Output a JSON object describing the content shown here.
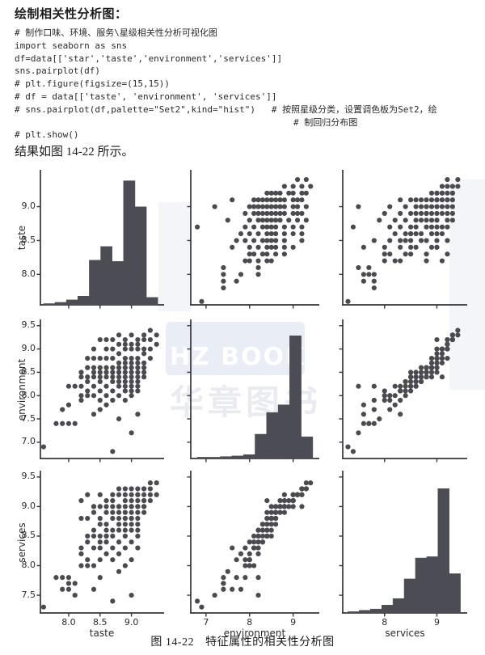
{
  "page": {
    "title": "绘制相关性分析图：",
    "result_text": "结果如图 14-22 所示。",
    "caption_prefix": "图 14-22",
    "caption_text": "特征属性的相关性分析图",
    "watermark": {
      "line1": "HZ BOOKS",
      "line2": "华章图书"
    }
  },
  "code": {
    "lines": [
      "# 制作口味、环境、服务\\星级相关性分析可视化图",
      "import seaborn as sns",
      "df=data[['star','taste','environment','services']]",
      "sns.pairplot(df)",
      "# plt.figure(figsize=(15,15))",
      "# df = data[['taste', 'environment', 'services']]",
      "# sns.pairplot(df,palette=\"Set2\",kind=\"hist\")   # 按照星级分类，设置调色板为Set2，绘",
      "# 制回归分布图",
      "# plt.show()"
    ]
  },
  "chart_data": {
    "type": "scatter",
    "subtype": "seaborn-pairplot",
    "title": "",
    "variables": [
      "taste",
      "environment",
      "services"
    ],
    "grid": "3x3, diagonal = histograms, off-diagonal = scatter",
    "legend": "none",
    "colors": {
      "dot": "#4a4a50",
      "bar": "#4c4c54",
      "axis": "#35353a"
    },
    "axes": {
      "taste": {
        "lim": [
          7.55,
          9.52
        ],
        "yticks": [
          8.0,
          8.5,
          9.0
        ],
        "ytick_labels": [
          "8.0",
          "8.5",
          "9.0"
        ],
        "xticks": [
          8.0,
          8.5,
          9.0
        ],
        "xtick_labels": [
          "8.0",
          "8.5",
          "9.0"
        ]
      },
      "environment": {
        "lim": [
          6.65,
          9.6
        ],
        "yticks": [
          7.0,
          7.5,
          8.0,
          8.5,
          9.0,
          9.5
        ],
        "ytick_labels": [
          "7.0",
          "7.5",
          "8.0",
          "8.5",
          "9.0",
          "9.5"
        ],
        "xticks": [
          7,
          8,
          9
        ],
        "xtick_labels": [
          "7",
          "8",
          "9"
        ]
      },
      "services": {
        "lim": [
          7.2,
          9.58
        ],
        "yticks": [
          7.5,
          8.0,
          8.5,
          9.0,
          9.5
        ],
        "ytick_labels": [
          "7.5",
          "8.0",
          "8.5",
          "9.0",
          "9.5"
        ],
        "xticks": [
          8,
          9
        ],
        "xtick_labels": [
          "8",
          "9"
        ]
      }
    },
    "histograms": {
      "taste": {
        "bin_start": 7.6,
        "bin_end": 9.42,
        "rel_heights": [
          0.01,
          0.02,
          0.04,
          0.07,
          0.36,
          0.47,
          0.35,
          1.0,
          0.79,
          0.06
        ]
      },
      "environment": {
        "bin_start": 6.8,
        "bin_end": 9.45,
        "rel_heights": [
          0.01,
          0.01,
          0.015,
          0.02,
          0.03,
          0.19,
          0.36,
          0.42,
          0.96,
          0.17
        ]
      },
      "services": {
        "bin_start": 7.3,
        "bin_end": 9.45,
        "rel_heights": [
          0.01,
          0.02,
          0.03,
          0.06,
          0.11,
          0.26,
          0.42,
          0.43,
          0.95,
          0.3
        ]
      }
    },
    "records_columns": [
      "taste",
      "environment",
      "services"
    ],
    "records": [
      [
        7.6,
        6.9,
        7.3
      ],
      [
        7.8,
        7.4,
        7.8
      ],
      [
        7.9,
        7.4,
        7.6
      ],
      [
        7.9,
        7.7,
        7.8
      ],
      [
        8.0,
        7.4,
        7.7
      ],
      [
        8.0,
        8.2,
        7.8
      ],
      [
        8.0,
        7.8,
        7.6
      ],
      [
        8.1,
        8.2,
        7.5
      ],
      [
        8.1,
        7.4,
        7.7
      ],
      [
        8.2,
        8.0,
        8.0
      ],
      [
        8.2,
        8.2,
        8.2
      ],
      [
        8.2,
        8.5,
        8.8
      ],
      [
        8.2,
        8.4,
        9.1
      ],
      [
        8.2,
        7.9,
        8.3
      ],
      [
        8.3,
        8.1,
        8.0
      ],
      [
        8.3,
        8.3,
        8.4
      ],
      [
        8.3,
        8.6,
        8.8
      ],
      [
        8.3,
        8.8,
        9.2
      ],
      [
        8.3,
        8.4,
        8.5
      ],
      [
        8.3,
        8.0,
        8.1
      ],
      [
        8.4,
        7.6,
        7.6
      ],
      [
        8.4,
        8.0,
        8.0
      ],
      [
        8.4,
        8.2,
        8.3
      ],
      [
        8.4,
        8.4,
        8.5
      ],
      [
        8.4,
        8.5,
        8.6
      ],
      [
        8.4,
        8.6,
        8.9
      ],
      [
        8.4,
        8.8,
        9.0
      ],
      [
        8.4,
        9.0,
        9.0
      ],
      [
        8.5,
        7.7,
        8.1
      ],
      [
        8.5,
        7.9,
        7.8
      ],
      [
        8.5,
        8.1,
        8.3
      ],
      [
        8.5,
        8.3,
        8.4
      ],
      [
        8.5,
        8.4,
        8.5
      ],
      [
        8.5,
        8.5,
        8.7
      ],
      [
        8.5,
        8.6,
        8.8
      ],
      [
        8.5,
        8.8,
        9.0
      ],
      [
        8.5,
        9.2,
        9.2
      ],
      [
        8.6,
        7.8,
        8.2
      ],
      [
        8.6,
        8.0,
        8.4
      ],
      [
        8.6,
        8.2,
        8.5
      ],
      [
        8.6,
        8.4,
        8.6
      ],
      [
        8.6,
        8.5,
        8.5
      ],
      [
        8.6,
        8.6,
        8.7
      ],
      [
        8.6,
        8.8,
        8.9
      ],
      [
        8.6,
        9.0,
        9.1
      ],
      [
        8.6,
        9.2,
        9.0
      ],
      [
        8.7,
        6.8,
        7.4
      ],
      [
        8.7,
        7.9,
        8.1
      ],
      [
        8.7,
        8.1,
        8.3
      ],
      [
        8.7,
        8.3,
        8.5
      ],
      [
        8.7,
        8.4,
        8.6
      ],
      [
        8.7,
        8.5,
        8.8
      ],
      [
        8.7,
        8.6,
        8.9
      ],
      [
        8.7,
        8.8,
        9.0
      ],
      [
        8.7,
        9.0,
        9.1
      ],
      [
        8.7,
        9.2,
        9.2
      ],
      [
        8.8,
        7.5,
        7.9
      ],
      [
        8.8,
        8.0,
        8.2
      ],
      [
        8.8,
        8.2,
        8.4
      ],
      [
        8.8,
        8.3,
        8.6
      ],
      [
        8.8,
        8.4,
        8.7
      ],
      [
        8.8,
        8.5,
        8.8
      ],
      [
        8.8,
        8.6,
        8.9
      ],
      [
        8.8,
        8.7,
        9.0
      ],
      [
        8.8,
        8.9,
        9.0
      ],
      [
        8.8,
        9.1,
        9.2
      ],
      [
        8.8,
        9.3,
        9.3
      ],
      [
        8.9,
        7.9,
        8.0
      ],
      [
        8.9,
        8.1,
        8.3
      ],
      [
        8.9,
        8.2,
        8.5
      ],
      [
        8.9,
        8.3,
        8.6
      ],
      [
        8.9,
        8.4,
        8.7
      ],
      [
        8.9,
        8.5,
        8.8
      ],
      [
        8.9,
        8.6,
        8.8
      ],
      [
        8.9,
        8.7,
        8.9
      ],
      [
        8.9,
        8.8,
        9.0
      ],
      [
        8.9,
        9.0,
        9.1
      ],
      [
        8.9,
        9.1,
        9.2
      ],
      [
        8.9,
        9.2,
        9.3
      ],
      [
        9.0,
        7.2,
        7.5
      ],
      [
        9.0,
        8.0,
        8.1
      ],
      [
        9.0,
        8.1,
        8.4
      ],
      [
        9.0,
        8.2,
        8.6
      ],
      [
        9.0,
        8.3,
        8.7
      ],
      [
        9.0,
        8.4,
        8.8
      ],
      [
        9.0,
        8.5,
        8.8
      ],
      [
        9.0,
        8.6,
        8.9
      ],
      [
        9.0,
        8.7,
        9.0
      ],
      [
        9.0,
        8.8,
        9.0
      ],
      [
        9.0,
        9.0,
        9.1
      ],
      [
        9.0,
        9.1,
        9.2
      ],
      [
        9.0,
        9.3,
        9.3
      ],
      [
        9.1,
        7.6,
        8.3
      ],
      [
        9.1,
        8.1,
        8.5
      ],
      [
        9.1,
        8.2,
        8.6
      ],
      [
        9.1,
        8.3,
        8.7
      ],
      [
        9.1,
        8.4,
        8.8
      ],
      [
        9.1,
        8.5,
        8.9
      ],
      [
        9.1,
        8.6,
        9.0
      ],
      [
        9.1,
        8.7,
        9.0
      ],
      [
        9.1,
        8.8,
        9.1
      ],
      [
        9.1,
        9.0,
        9.2
      ],
      [
        9.1,
        9.1,
        9.2
      ],
      [
        9.1,
        9.2,
        9.3
      ],
      [
        9.2,
        8.4,
        8.9
      ],
      [
        9.2,
        8.5,
        9.0
      ],
      [
        9.2,
        8.6,
        9.0
      ],
      [
        9.2,
        8.7,
        9.1
      ],
      [
        9.2,
        8.9,
        9.1
      ],
      [
        9.2,
        9.0,
        9.2
      ],
      [
        9.2,
        9.2,
        9.3
      ],
      [
        9.2,
        9.3,
        9.3
      ],
      [
        9.3,
        8.8,
        9.1
      ],
      [
        9.3,
        9.0,
        9.2
      ],
      [
        9.3,
        9.2,
        9.3
      ],
      [
        9.3,
        9.4,
        9.4
      ],
      [
        9.4,
        9.1,
        9.2
      ],
      [
        9.4,
        9.3,
        9.4
      ]
    ]
  }
}
